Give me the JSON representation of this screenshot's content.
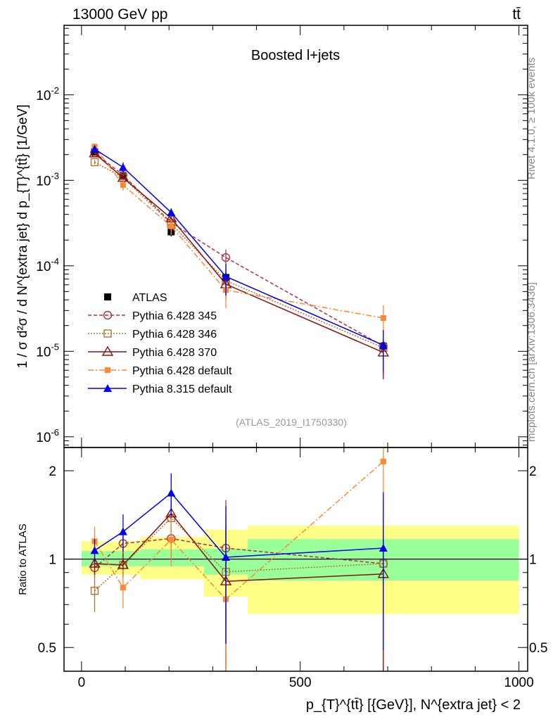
{
  "header": {
    "energy_label": "13000 GeV pp",
    "process_label": "tt̄"
  },
  "side_labels": {
    "rivet": "Rivet 4.1.0, ≥ 100k events",
    "mcplots": "mcplots.cern.ch [arXiv:1306.3436]"
  },
  "chart_data": [
    {
      "type": "line",
      "panel": "main",
      "title": "Boosted l+jets",
      "analysis_tag": "(ATLAS_2019_I1750330)",
      "ylabel": "1 / σ d²σ / d N^{extra jet} d p_{T}^{tt̄} [1/GeV]",
      "yscale": "log",
      "xlim": [
        -40,
        1020
      ],
      "ylim": [
        7.5e-07,
        0.065
      ],
      "y_tick_labels": [
        "10^{-6}",
        "10^{-5}",
        "10^{-4}",
        "10^{-3}",
        "10^{-2}"
      ],
      "legend_position": "center-left",
      "x": [
        30,
        95,
        205,
        330,
        690
      ],
      "series": [
        {
          "name": "ATLAS",
          "color": "#000000",
          "marker": "square-filled",
          "dash": "none",
          "values": [
            0.00215,
            0.00112,
            0.00025,
            7.3e-05,
            1.15e-05
          ],
          "err_low": [
            0.0002,
            0.0001,
            3e-05,
            2e-05,
            6e-06
          ],
          "err_high": [
            0.0002,
            0.0001,
            3e-05,
            2e-05,
            6e-06
          ]
        },
        {
          "name": "Pythia 6.428 345",
          "color": "#aa3344",
          "marker": "circle-open",
          "dash": "5,3",
          "values": [
            0.0021,
            0.00115,
            0.00032,
            0.000125,
            1.15e-05
          ],
          "err_low": [
            0.0001,
            6e-05,
            3e-05,
            3e-05,
            6e-06
          ],
          "err_high": [
            0.0001,
            6e-05,
            3e-05,
            3e-05,
            6e-06
          ]
        },
        {
          "name": "Pythia 6.428 346",
          "color": "#aa7733",
          "marker": "square-open",
          "dash": "2,2",
          "values": [
            0.00163,
            0.00108,
            0.00031,
            6.7e-05,
            1.1e-05
          ],
          "err_low": [
            0.0001,
            6e-05,
            3e-05,
            2e-05,
            6e-06
          ],
          "err_high": [
            0.0001,
            6e-05,
            3e-05,
            2e-05,
            6e-06
          ]
        },
        {
          "name": "Pythia 6.428 370",
          "color": "#881111",
          "marker": "triangle-open",
          "dash": "none",
          "values": [
            0.00207,
            0.00107,
            0.00036,
            6.1e-05,
            9.7e-06
          ],
          "err_low": [
            0.0001,
            6e-05,
            3e-05,
            2e-05,
            5e-06
          ],
          "err_high": [
            0.0001,
            6e-05,
            3e-05,
            2e-05,
            5e-06
          ]
        },
        {
          "name": "Pythia 6.428 default",
          "color": "#ff8833",
          "marker": "square-filled-small",
          "dash": "8,3,2,3",
          "values": [
            0.00248,
            0.00088,
            0.00029,
            5.2e-05,
            2.45e-05
          ],
          "err_low": [
            0.0002,
            0.00012,
            6e-05,
            2e-05,
            1e-05
          ],
          "err_high": [
            0.0002,
            0.00012,
            6e-05,
            2e-05,
            1e-05
          ]
        },
        {
          "name": "Pythia 8.315 default",
          "color": "#0000ee",
          "marker": "triangle-filled",
          "dash": "none",
          "values": [
            0.00232,
            0.00142,
            0.00042,
            7.5e-05,
            1.18e-05
          ],
          "err_low": [
            0.00015,
            0.0002,
            5e-05,
            3e-05,
            6e-06
          ],
          "err_high": [
            0.00015,
            0.0002,
            5e-05,
            3e-05,
            6e-06
          ]
        }
      ]
    },
    {
      "type": "line",
      "panel": "ratio",
      "ylabel": "Ratio to ATLAS",
      "xlabel": "p_{T}^{tt̄} [{GeV}], N^{extra jet} < 2",
      "yscale": "log",
      "xlim": [
        -40,
        1020
      ],
      "ylim": [
        0.415,
        2.4
      ],
      "y_ticks": [
        0.5,
        1,
        2
      ],
      "y_tick_labels": [
        "0.5",
        "1",
        "2"
      ],
      "x_ticks": [
        0,
        500,
        1000
      ],
      "x_tick_labels": [
        "0",
        "500",
        "1000"
      ],
      "reference_line": 1,
      "uncertainty_bins": [
        {
          "x_low": 0,
          "x_high": 135,
          "stat_low": 0.945,
          "stat_high": 1.065,
          "tot_low": 0.885,
          "tot_high": 1.15
        },
        {
          "x_low": 135,
          "x_high": 280,
          "stat_low": 0.945,
          "stat_high": 1.08,
          "tot_low": 0.855,
          "tot_high": 1.19
        },
        {
          "x_low": 280,
          "x_high": 380,
          "stat_low": 0.885,
          "stat_high": 1.085,
          "tot_low": 0.745,
          "tot_high": 1.26
        },
        {
          "x_low": 380,
          "x_high": 1000,
          "stat_low": 0.845,
          "stat_high": 1.17,
          "tot_low": 0.65,
          "tot_high": 1.3
        }
      ],
      "x": [
        30,
        95,
        205,
        330,
        690
      ],
      "series": [
        {
          "name": "Pythia 6.428 345",
          "color": "#aa3344",
          "marker": "circle-open",
          "dash": "5,3",
          "values": [
            0.935,
            1.13,
            1.175,
            1.09,
            0.965
          ],
          "err_low": [
            0.07,
            0.09,
            0.18,
            0.5,
            0.6
          ],
          "err_high": [
            0.07,
            0.09,
            0.18,
            0.5,
            0.6
          ]
        },
        {
          "name": "Pythia 6.428 346",
          "color": "#aa7733",
          "marker": "square-open",
          "dash": "2,2",
          "values": [
            0.78,
            0.955,
            1.38,
            0.905,
            0.965
          ],
          "err_low": [
            0.12,
            0.09,
            0.2,
            0.5,
            0.6
          ],
          "err_high": [
            0.12,
            0.09,
            0.2,
            0.5,
            0.6
          ]
        },
        {
          "name": "Pythia 6.428 370",
          "color": "#881111",
          "marker": "triangle-open",
          "dash": "none",
          "values": [
            0.965,
            0.955,
            1.43,
            0.84,
            0.89
          ],
          "err_low": [
            0.08,
            0.09,
            0.2,
            0.45,
            0.55
          ],
          "err_high": [
            0.08,
            0.09,
            0.2,
            0.45,
            0.55
          ]
        },
        {
          "name": "Pythia 6.428 default",
          "color": "#ff8833",
          "marker": "square-filled-small",
          "dash": "8,3,2,3",
          "values": [
            1.15,
            0.8,
            1.165,
            0.73,
            2.15
          ],
          "err_low": [
            0.14,
            0.12,
            0.22,
            0.35,
            0.9
          ],
          "err_high": [
            0.14,
            0.12,
            0.22,
            0.35,
            0.9
          ]
        },
        {
          "name": "Pythia 8.315 default",
          "color": "#0000ee",
          "marker": "triangle-filled",
          "dash": "none",
          "values": [
            1.07,
            1.24,
            1.68,
            1.015,
            1.09
          ],
          "err_low": [
            0.1,
            0.18,
            0.28,
            0.5,
            0.6
          ],
          "err_high": [
            0.1,
            0.18,
            0.28,
            0.5,
            0.6
          ]
        }
      ]
    }
  ]
}
